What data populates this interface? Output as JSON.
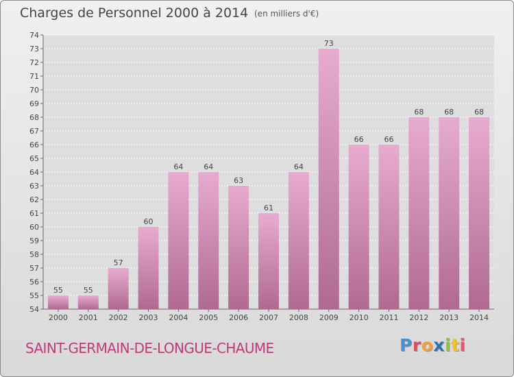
{
  "header": {
    "title": "Charges de Personnel 2000 à 2014",
    "subtitle": "(en milliers d'€)"
  },
  "footer": {
    "commune": "SAINT-GERMAIN-DE-LONGUE-CHAUME",
    "logo_letters": [
      {
        "ch": "P",
        "color": "#4a8fd0"
      },
      {
        "ch": "r",
        "color": "#e24a5a"
      },
      {
        "ch": "o",
        "color": "#f2a23a"
      },
      {
        "ch": "x",
        "color": "#2f6fb3"
      },
      {
        "ch": "i",
        "color": "#8cc63f"
      },
      {
        "ch": "t",
        "color": "#f2c12e"
      },
      {
        "ch": "i",
        "color": "#e2576b"
      }
    ]
  },
  "colors": {
    "bar_top": "#e8abd0",
    "bar_bottom": "#b06a92",
    "grid": "#ffffff",
    "axis_text": "#444444"
  },
  "chart_data": {
    "type": "bar",
    "categories": [
      "2000",
      "2001",
      "2002",
      "2003",
      "2004",
      "2005",
      "2006",
      "2007",
      "2008",
      "2009",
      "2010",
      "2011",
      "2012",
      "2013",
      "2014"
    ],
    "values": [
      55,
      55,
      57,
      60,
      64,
      64,
      63,
      61,
      64,
      73,
      66,
      66,
      68,
      68,
      68
    ],
    "ylim": [
      54,
      74
    ],
    "yticks": [
      54,
      55,
      56,
      57,
      58,
      59,
      60,
      61,
      62,
      63,
      64,
      65,
      66,
      67,
      68,
      69,
      70,
      71,
      72,
      73,
      74
    ],
    "grid": true,
    "data_labels": true
  }
}
